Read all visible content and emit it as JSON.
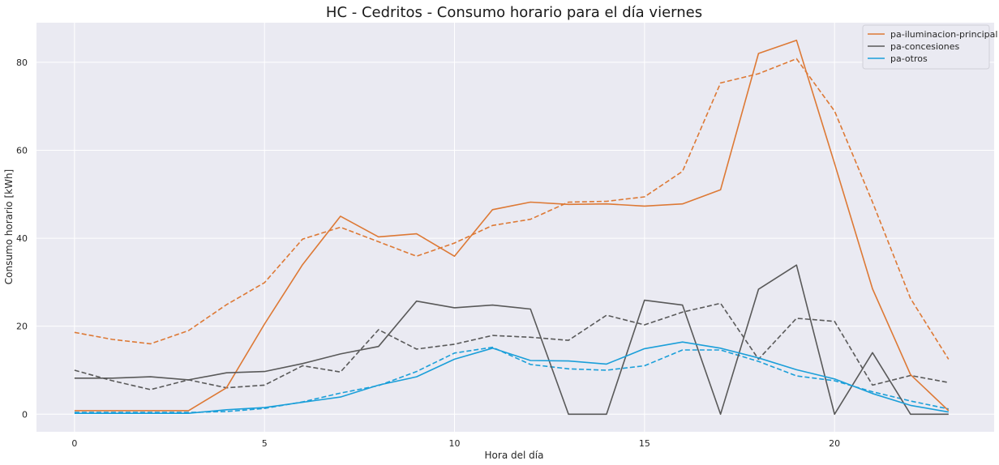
{
  "chart_data": {
    "type": "line",
    "title": "HC - Cedritos - Consumo horario para el día viernes",
    "xlabel": "Hora del día",
    "ylabel": "Consumo horario [kWh]",
    "xlim": [
      -1,
      24.2
    ],
    "ylim": [
      -4,
      89
    ],
    "xticks": [
      0,
      5,
      10,
      15,
      20
    ],
    "yticks": [
      0,
      20,
      40,
      60,
      80
    ],
    "grid": true,
    "legend_position": "top-right",
    "background": "#eaeaf2",
    "x": [
      0,
      1,
      2,
      3,
      4,
      5,
      6,
      7,
      8,
      9,
      10,
      11,
      12,
      13,
      14,
      15,
      16,
      17,
      18,
      19,
      20,
      21,
      22,
      23
    ],
    "series": [
      {
        "name": "pa-iluminacion-principal",
        "color": "#dd7935",
        "style": "solid",
        "values": [
          0.8,
          0.8,
          0.8,
          0.8,
          6,
          20.5,
          34,
          45,
          40.3,
          41,
          35.9,
          46.5,
          48.2,
          47.7,
          47.8,
          47.3,
          47.8,
          51,
          82,
          85,
          57,
          28.5,
          9,
          0.8
        ]
      },
      {
        "name": "pa-concesiones",
        "color": "#595959",
        "style": "solid",
        "values": [
          8.2,
          8.2,
          8.5,
          7.8,
          9.4,
          9.7,
          11.5,
          13.7,
          15.4,
          25.7,
          24.2,
          24.8,
          23.9,
          0,
          0,
          25.9,
          24.8,
          0,
          28.4,
          33.9,
          0,
          14,
          0,
          0
        ]
      },
      {
        "name": "pa-otros",
        "color": "#1b9fd9",
        "style": "solid",
        "values": [
          0.2,
          0.2,
          0.2,
          0.2,
          1,
          1.5,
          2.7,
          3.9,
          6.6,
          8.5,
          12.5,
          15,
          12.2,
          12.1,
          11.4,
          14.9,
          16.4,
          15,
          12.8,
          10.1,
          8,
          4.7,
          2,
          0.5
        ]
      },
      {
        "color": "#dd7935",
        "style": "dashed",
        "values": [
          18.6,
          17,
          16,
          19,
          24.9,
          29.9,
          39.8,
          42.5,
          39.2,
          35.9,
          38.9,
          42.9,
          44.3,
          48.2,
          48.4,
          49.4,
          55.2,
          75.3,
          77.4,
          80.8,
          68.9,
          48.2,
          26.3,
          12.5
        ]
      },
      {
        "color": "#595959",
        "style": "dashed",
        "values": [
          10,
          7.6,
          5.6,
          7.8,
          6,
          6.6,
          11,
          9.6,
          19.2,
          14.8,
          15.9,
          17.9,
          17.5,
          16.8,
          22.5,
          20.3,
          23.2,
          25.2,
          12.5,
          21.8,
          21.1,
          6.6,
          8.8,
          7.2
        ]
      },
      {
        "color": "#1b9fd9",
        "style": "dashed",
        "values": [
          0.4,
          0.4,
          0.4,
          0.4,
          0.6,
          1.3,
          2.8,
          4.8,
          6.5,
          9.7,
          13.9,
          15.2,
          11.3,
          10.3,
          10,
          11,
          14.6,
          14.6,
          12,
          8.7,
          7.6,
          5.1,
          3,
          1.2
        ]
      }
    ]
  }
}
